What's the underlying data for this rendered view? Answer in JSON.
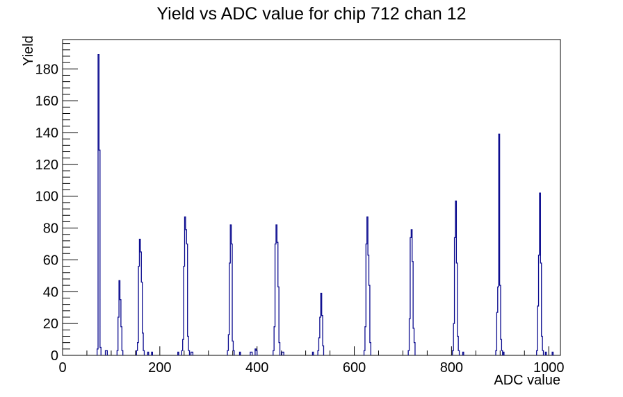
{
  "chart_data": {
    "type": "bar",
    "title": "Yield vs ADC value for chip 712 chan 12",
    "xlabel": "ADC value",
    "ylabel": "Yield",
    "xlim": [
      0,
      1024
    ],
    "ylim": [
      0,
      198.45
    ],
    "x_major_ticks": [
      0,
      200,
      400,
      600,
      800,
      1000
    ],
    "x_minor_step": 50,
    "y_major_ticks": [
      0,
      20,
      40,
      60,
      80,
      100,
      120,
      140,
      160,
      180
    ],
    "y_minor_step": 4,
    "grid": false,
    "legend": "none",
    "bin_width": 2,
    "line_color": "#0a0a8e",
    "frame_color": "#000000",
    "background_color": "#ffffff",
    "clusters": [
      [
        [
          72,
          4
        ],
        [
          74,
          189
        ],
        [
          76,
          129
        ],
        [
          78,
          5
        ]
      ],
      [
        [
          89,
          3
        ],
        [
          91,
          3
        ]
      ],
      [
        [
          113,
          3
        ],
        [
          115,
          24
        ],
        [
          117,
          47
        ],
        [
          119,
          35
        ],
        [
          121,
          18
        ],
        [
          123,
          3
        ]
      ],
      [
        [
          153,
          3
        ],
        [
          155,
          8
        ],
        [
          157,
          56
        ],
        [
          159,
          73
        ],
        [
          161,
          65
        ],
        [
          163,
          46
        ],
        [
          165,
          14
        ],
        [
          167,
          3
        ]
      ],
      [
        [
          176,
          2
        ]
      ],
      [
        [
          184,
          2
        ]
      ],
      [
        [
          238,
          2
        ]
      ],
      [
        [
          246,
          3
        ],
        [
          248,
          10
        ],
        [
          250,
          56
        ],
        [
          252,
          87
        ],
        [
          254,
          79
        ],
        [
          256,
          70
        ],
        [
          258,
          12
        ],
        [
          260,
          3
        ]
      ],
      [
        [
          265,
          2
        ],
        [
          267,
          2
        ]
      ],
      [
        [
          340,
          3
        ],
        [
          342,
          13
        ],
        [
          344,
          58
        ],
        [
          346,
          82
        ],
        [
          348,
          70
        ],
        [
          350,
          9
        ],
        [
          352,
          3
        ]
      ],
      [
        [
          365,
          2
        ]
      ],
      [
        [
          387,
          2
        ],
        [
          389,
          2
        ]
      ],
      [
        [
          397,
          4
        ],
        [
          399,
          3
        ]
      ],
      [
        [
          434,
          3
        ],
        [
          436,
          18
        ],
        [
          438,
          70
        ],
        [
          440,
          82
        ],
        [
          442,
          71
        ],
        [
          444,
          43
        ],
        [
          446,
          8
        ]
      ],
      [
        [
          452,
          2
        ],
        [
          454,
          2
        ]
      ],
      [
        [
          515,
          2
        ]
      ],
      [
        [
          526,
          3
        ],
        [
          528,
          11
        ],
        [
          530,
          24
        ],
        [
          532,
          39
        ],
        [
          534,
          25
        ],
        [
          536,
          6
        ]
      ],
      [
        [
          621,
          3
        ],
        [
          623,
          18
        ],
        [
          625,
          70
        ],
        [
          627,
          87
        ],
        [
          629,
          63
        ],
        [
          631,
          44
        ],
        [
          633,
          8
        ]
      ],
      [
        [
          712,
          3
        ],
        [
          714,
          23
        ],
        [
          716,
          74
        ],
        [
          718,
          79
        ],
        [
          720,
          59
        ],
        [
          722,
          17
        ],
        [
          724,
          8
        ]
      ],
      [
        [
          803,
          3
        ],
        [
          805,
          20
        ],
        [
          807,
          74
        ],
        [
          809,
          97
        ],
        [
          811,
          58
        ],
        [
          813,
          12
        ],
        [
          815,
          3
        ]
      ],
      [
        [
          824,
          2
        ]
      ],
      [
        [
          892,
          3
        ],
        [
          894,
          27
        ],
        [
          896,
          43
        ],
        [
          898,
          139
        ],
        [
          900,
          44
        ],
        [
          902,
          10
        ],
        [
          904,
          3
        ]
      ],
      [
        [
          907,
          2
        ]
      ],
      [
        [
          976,
          3
        ],
        [
          978,
          31
        ],
        [
          980,
          63
        ],
        [
          982,
          102
        ],
        [
          984,
          58
        ],
        [
          986,
          12
        ],
        [
          988,
          3
        ]
      ],
      [
        [
          994,
          2
        ]
      ],
      [
        [
          1008,
          2
        ]
      ]
    ]
  }
}
